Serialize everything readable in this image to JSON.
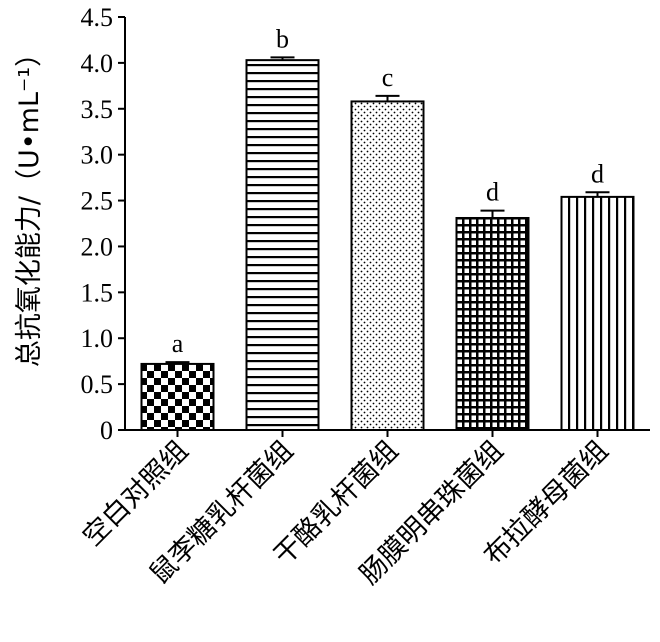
{
  "chart_data": {
    "type": "bar",
    "title": "",
    "xlabel": "",
    "ylabel": "总抗氧化能力/（U•mL⁻¹）",
    "ylim": [
      0,
      4.5
    ],
    "yticks": [
      "0",
      "0.5",
      "1.0",
      "1.5",
      "2.0",
      "2.5",
      "3.0",
      "3.5",
      "4.0",
      "4.5"
    ],
    "ytick_values": [
      0,
      0.5,
      1.0,
      1.5,
      2.0,
      2.5,
      3.0,
      3.5,
      4.0,
      4.5
    ],
    "categories": [
      "空白对照组",
      "鼠李糖乳杆菌组",
      "干酪乳杆菌组",
      "肠膜明串珠菌组",
      "布拉酵母菌组"
    ],
    "values": [
      0.72,
      4.03,
      3.58,
      2.31,
      2.54
    ],
    "errors": [
      0.02,
      0.03,
      0.06,
      0.08,
      0.05
    ],
    "significance": [
      "a",
      "b",
      "c",
      "d",
      "d"
    ],
    "patterns": [
      "checker",
      "horizontal-lines",
      "dots",
      "grid",
      "vertical-lines"
    ]
  }
}
